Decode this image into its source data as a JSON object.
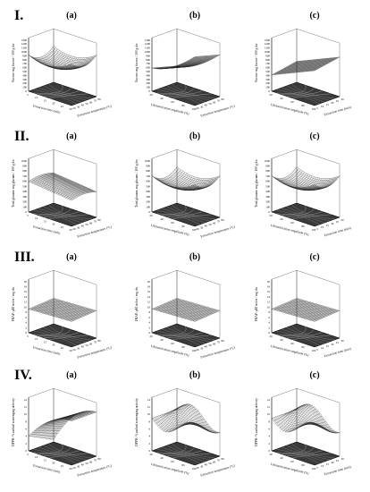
{
  "chart_data": {
    "type": "surface",
    "rows": [
      {
        "label": "I.",
        "zlabel": "Fucose: mg fucose / 100 g dw",
        "zticks": [
          "0",
          "100",
          "200",
          "300",
          "400",
          "500",
          "600",
          "700",
          "800",
          "900",
          "1000",
          "1100",
          "1200",
          "1300"
        ],
        "panels": [
          {
            "label": "(a)",
            "xlabel": "Extraction time (min)",
            "ylabel": "Extraction temperature (°C)",
            "xticks": [
              "5",
              "10",
              "15",
              "20",
              "25",
              "30"
            ],
            "yticks": [
              "20",
              "30",
              "40",
              "50",
              "60",
              "70",
              "80"
            ],
            "shape": "bowl"
          },
          {
            "label": "(b)",
            "xlabel": "Ultrasonication amplitude (%)",
            "ylabel": "Extraction temperature (°C)",
            "xticks": [
              "20",
              "40",
              "60",
              "80",
              "100"
            ],
            "yticks": [
              "20",
              "30",
              "40",
              "50",
              "60",
              "70",
              "80"
            ],
            "shape": "saddle-up"
          },
          {
            "label": "(c)",
            "xlabel": "Ultrasonication amplitude (%)",
            "ylabel": "Extraction time (min)",
            "xticks": [
              "20",
              "40",
              "60",
              "80",
              "100"
            ],
            "yticks": [
              "5",
              "10",
              "15",
              "20",
              "25",
              "30"
            ],
            "shape": "ramp"
          }
        ]
      },
      {
        "label": "II.",
        "zlabel": "Total glucans: mg glucans / 100 g dw",
        "zticks": [
          "0",
          "100",
          "200",
          "300",
          "400",
          "500",
          "600",
          "700",
          "800",
          "900",
          "1000"
        ],
        "panels": [
          {
            "label": "(a)",
            "xlabel": "Extraction time (min)",
            "ylabel": "Extraction temperature (°C)",
            "xticks": [
              "5",
              "10",
              "15",
              "20",
              "25",
              "30"
            ],
            "yticks": [
              "20",
              "30",
              "40",
              "50",
              "60",
              "70",
              "80"
            ],
            "shape": "flat-dip"
          },
          {
            "label": "(b)",
            "xlabel": "Ultrasonication amplitude (%)",
            "ylabel": "Extraction temperature (°C)",
            "xticks": [
              "20",
              "40",
              "60",
              "80",
              "100"
            ],
            "yticks": [
              "20",
              "30",
              "40",
              "50",
              "60",
              "70",
              "80"
            ],
            "shape": "bowl"
          },
          {
            "label": "(c)",
            "xlabel": "Ultrasonication amplitude (%)",
            "ylabel": "Extraction time (min)",
            "xticks": [
              "20",
              "40",
              "60",
              "80",
              "100"
            ],
            "yticks": [
              "5",
              "10",
              "15",
              "20",
              "25",
              "30"
            ],
            "shape": "bowl"
          }
        ]
      },
      {
        "label": "III.",
        "zlabel": "FRAP: µM trolox / mg dw",
        "zticks": [
          "0",
          "2",
          "4",
          "6",
          "8",
          "10",
          "12",
          "14",
          "16",
          "18",
          "20"
        ],
        "panels": [
          {
            "label": "(a)",
            "xlabel": "Extraction time (min)",
            "ylabel": "Extraction temperature (°C)",
            "xticks": [
              "5",
              "10",
              "15",
              "20",
              "25",
              "30"
            ],
            "yticks": [
              "20",
              "30",
              "40",
              "50",
              "60",
              "70",
              "80"
            ],
            "shape": "flat"
          },
          {
            "label": "(b)",
            "xlabel": "Ultrasonication amplitude (%)",
            "ylabel": "Extraction temperature (°C)",
            "xticks": [
              "20",
              "40",
              "60",
              "80",
              "100"
            ],
            "yticks": [
              "20",
              "30",
              "40",
              "50",
              "60",
              "70",
              "80"
            ],
            "shape": "flat"
          },
          {
            "label": "(c)",
            "xlabel": "Ultrasonication amplitude (%)",
            "ylabel": "Extraction time (min)",
            "xticks": [
              "20",
              "40",
              "60",
              "80",
              "100"
            ],
            "yticks": [
              "5",
              "10",
              "15",
              "20",
              "25",
              "30"
            ],
            "shape": "flat"
          }
        ]
      },
      {
        "label": "IV.",
        "zlabel": "DPPH: % radical scavenging activity",
        "zticks": [
          "0",
          "2",
          "4",
          "6",
          "8",
          "10",
          "12",
          "14"
        ],
        "panels": [
          {
            "label": "(a)",
            "xlabel": "Extraction time (min)",
            "ylabel": "Extraction temperature (°C)",
            "xticks": [
              "5",
              "10",
              "15",
              "20",
              "25",
              "30"
            ],
            "yticks": [
              "20",
              "30",
              "40",
              "50",
              "60",
              "70",
              "80"
            ],
            "shape": "dome"
          },
          {
            "label": "(b)",
            "xlabel": "Ultrasonication amplitude (%)",
            "ylabel": "Extraction temperature (°C)",
            "xticks": [
              "20",
              "40",
              "60",
              "80",
              "100"
            ],
            "yticks": [
              "20",
              "30",
              "40",
              "50",
              "60",
              "70",
              "80"
            ],
            "shape": "wave"
          },
          {
            "label": "(c)",
            "xlabel": "Ultrasonication amplitude (%)",
            "ylabel": "Extraction time (min)",
            "xticks": [
              "20",
              "40",
              "60",
              "80",
              "100"
            ],
            "yticks": [
              "5",
              "10",
              "15",
              "20",
              "25",
              "30"
            ],
            "shape": "wave"
          }
        ]
      }
    ]
  }
}
